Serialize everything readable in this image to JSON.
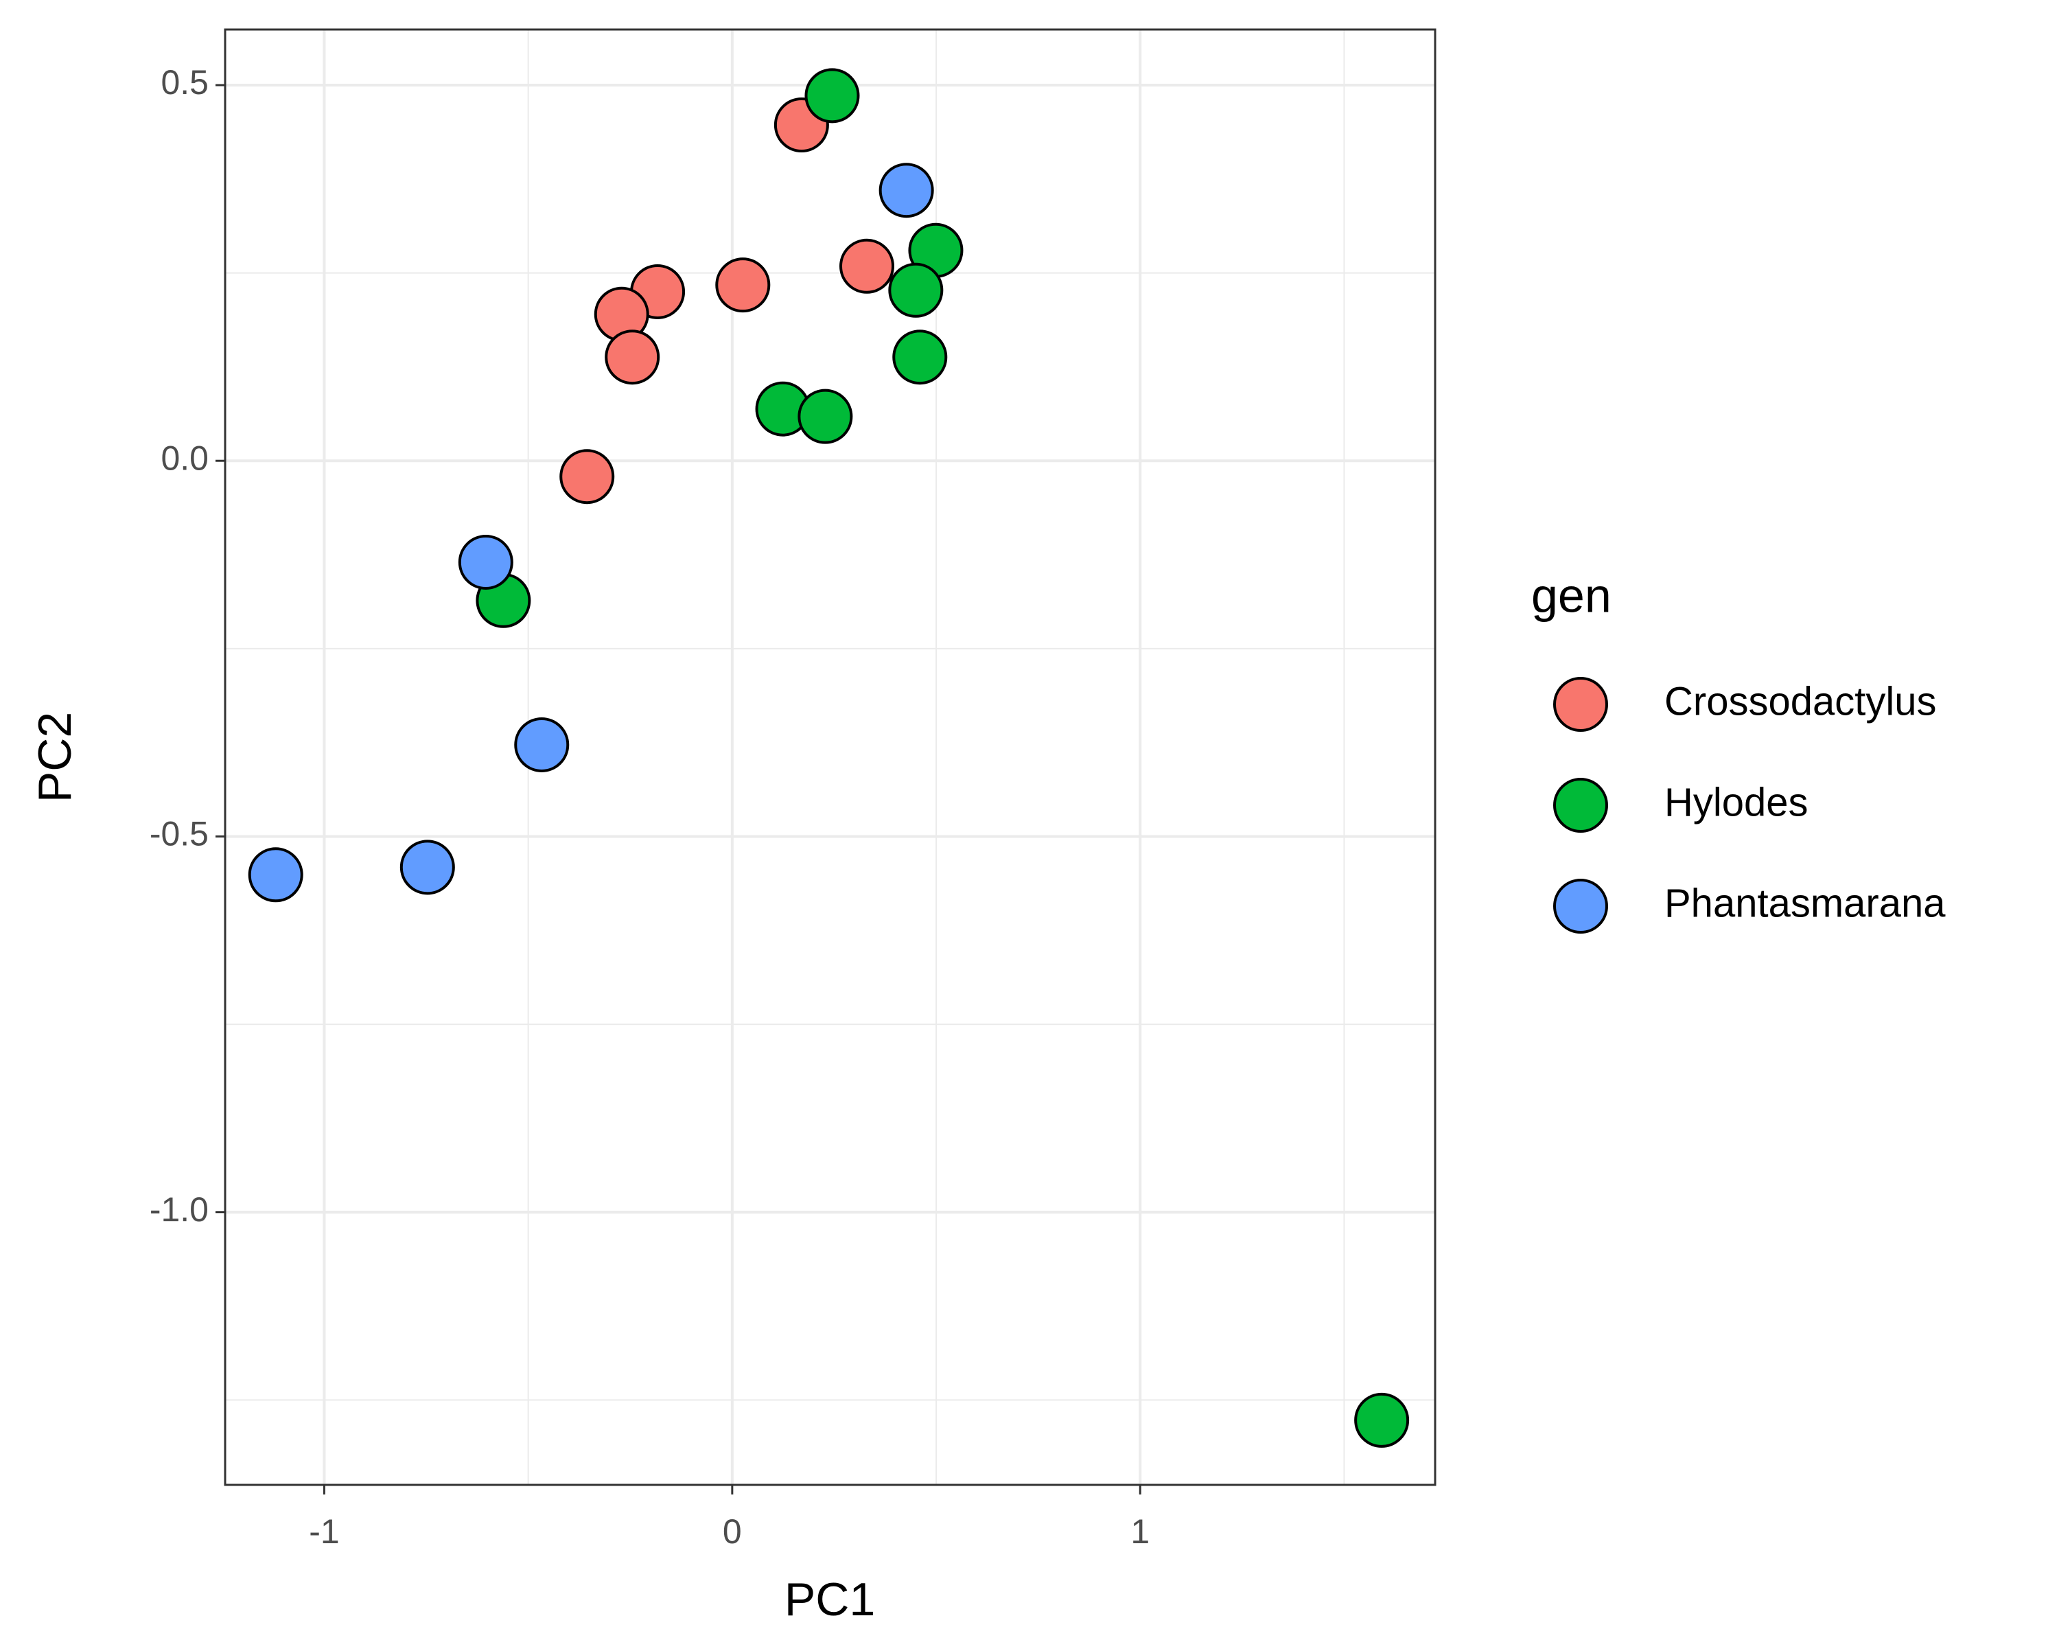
{
  "chart_data": {
    "type": "scatter",
    "xlabel": "PC1",
    "ylabel": "PC2",
    "legend_title": "gen",
    "legend": "right",
    "grid": true,
    "xlim": [
      -1.243,
      1.723
    ],
    "ylim": [
      -1.363,
      0.574
    ],
    "xticks": [
      -1,
      0,
      1
    ],
    "yticks": [
      0.5,
      {
        "value": 0,
        "label": "0.0"
      },
      -0.5,
      {
        "value": -1,
        "label": "-1.0"
      }
    ],
    "series": [
      {
        "name": "Crossodactylus",
        "color": "#f8766d",
        "x": [
          0.17,
          0.33,
          0.026,
          -0.183,
          -0.271,
          -0.245,
          -0.356
        ],
        "values": [
          0.447,
          0.259,
          0.234,
          0.225,
          0.195,
          0.138,
          -0.021
        ]
      },
      {
        "name": "Hylodes",
        "color": "#00ba38",
        "x": [
          0.245,
          0.499,
          0.45,
          0.46,
          0.124,
          0.228,
          -0.561,
          1.592
        ],
        "values": [
          0.486,
          0.28,
          0.227,
          0.138,
          0.069,
          0.059,
          -0.186,
          -1.277
        ]
      },
      {
        "name": "Phantasmarana",
        "color": "#619cff",
        "x": [
          0.427,
          -0.604,
          -0.467,
          -0.747,
          -1.119
        ],
        "values": [
          0.36,
          -0.135,
          -0.378,
          -0.541,
          -0.551
        ]
      }
    ]
  }
}
